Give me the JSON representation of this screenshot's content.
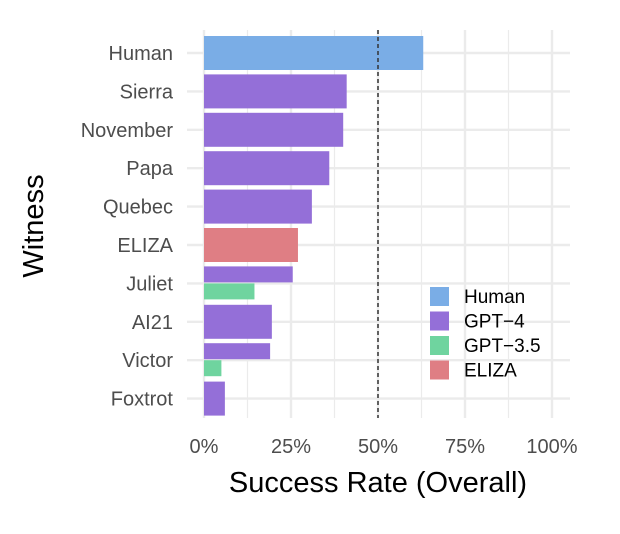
{
  "chart_data": {
    "type": "bar",
    "orientation": "horizontal",
    "xlabel": "Success Rate (Overall)",
    "ylabel": "Witness",
    "xlim": [
      0,
      1
    ],
    "x_ticks": [
      {
        "value": 0,
        "label": "0%"
      },
      {
        "value": 0.25,
        "label": "25%"
      },
      {
        "value": 0.5,
        "label": "50%"
      },
      {
        "value": 0.75,
        "label": "75%"
      },
      {
        "value": 1.0,
        "label": "100%"
      }
    ],
    "reference_line": {
      "value": 0.5,
      "style": "dashed"
    },
    "categories": [
      "Human",
      "Sierra",
      "November",
      "Papa",
      "Quebec",
      "ELIZA",
      "Juliet",
      "AI21",
      "Victor",
      "Foxtrot"
    ],
    "series": [
      {
        "name": "Human",
        "color": "#7aade6",
        "values": [
          0.63,
          null,
          null,
          null,
          null,
          null,
          null,
          null,
          null,
          null
        ]
      },
      {
        "name": "GPT−4",
        "color": "#946fd8",
        "values": [
          null,
          0.41,
          0.4,
          0.36,
          0.31,
          null,
          0.255,
          0.195,
          0.19,
          0.06
        ]
      },
      {
        "name": "GPT−3.5",
        "color": "#6fd49f",
        "values": [
          null,
          null,
          null,
          null,
          null,
          null,
          0.145,
          null,
          0.05,
          null
        ]
      },
      {
        "name": "ELIZA",
        "color": "#df7e84",
        "values": [
          null,
          null,
          null,
          null,
          null,
          0.27,
          null,
          null,
          null,
          null
        ]
      }
    ],
    "legend_position": "bottom-right",
    "grid": true
  }
}
